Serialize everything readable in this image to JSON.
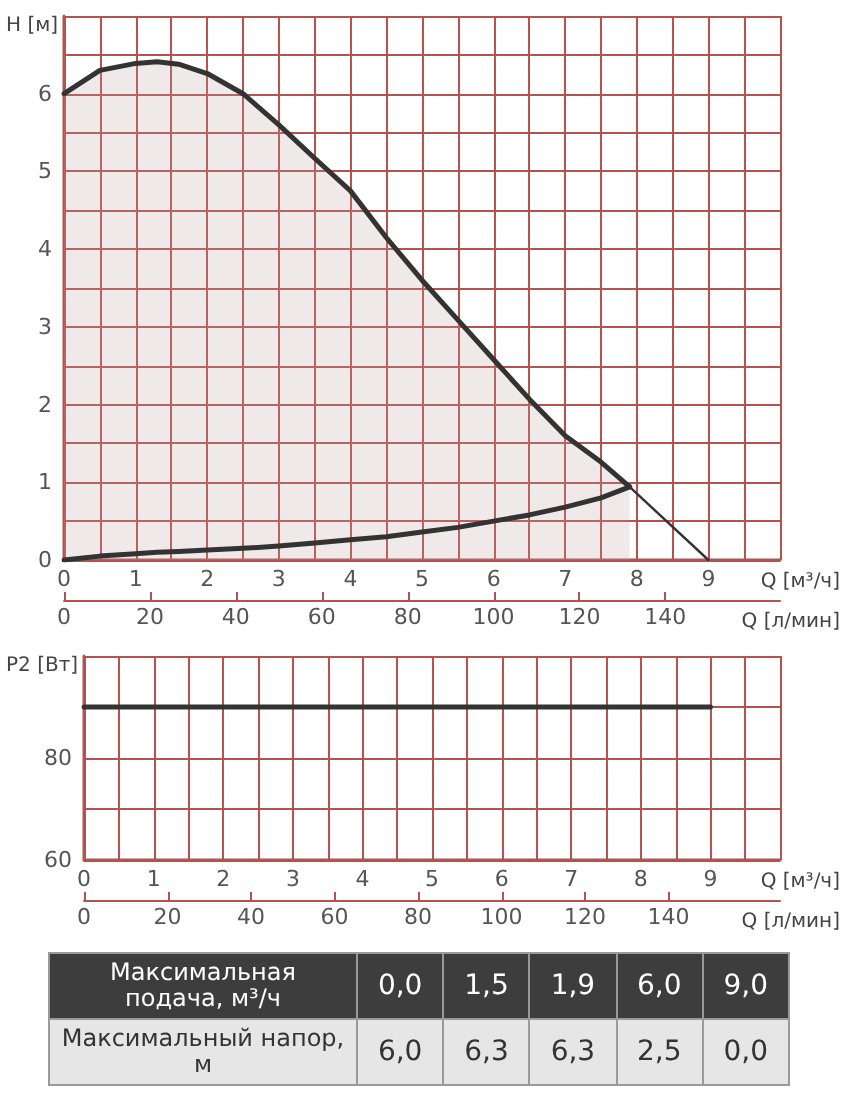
{
  "chart_data": [
    {
      "type": "line",
      "ylabel": "H [м]",
      "xlabel": "Q [м³/ч]",
      "x2label": "Q [л/мин]",
      "xlim": [
        0,
        10
      ],
      "xticks": [
        0,
        {
          "value": 0.5,
          "label": null
        },
        1,
        {
          "value": 1.5,
          "label": null
        },
        2,
        {
          "value": 2.5,
          "label": null
        },
        3,
        {
          "value": 3.5,
          "label": null
        },
        4,
        {
          "value": 4.5,
          "label": null
        },
        5,
        {
          "value": 5.5,
          "label": null
        },
        6,
        {
          "value": 6.5,
          "label": null
        },
        7,
        {
          "value": 7.5,
          "label": null
        },
        8,
        {
          "value": 8.5,
          "label": null
        },
        9,
        {
          "value": 9.5,
          "label": null
        },
        {
          "value": 10,
          "label": null
        }
      ],
      "x2lim": [
        0,
        166.7
      ],
      "x2ticks": [
        0,
        20,
        40,
        60,
        80,
        100,
        120,
        140
      ],
      "ylim": [
        0,
        7
      ],
      "yticks": [
        0,
        {
          "value": 0.5,
          "label": null
        },
        1,
        {
          "value": 1.5,
          "label": null
        },
        2,
        {
          "value": 2.5,
          "label": null
        },
        3,
        {
          "value": 3.5,
          "label": null
        },
        4,
        {
          "value": 4.5,
          "label": null
        },
        5,
        {
          "value": 5.5,
          "label": null
        },
        6,
        {
          "value": 6.5,
          "label": null
        },
        {
          "value": 7,
          "label": null
        }
      ],
      "grid": true,
      "marker": "none",
      "series": [
        {
          "type": "area",
          "color": "#333333",
          "x": [
            0,
            0.5,
            1,
            1.3,
            1.6,
            2,
            2.5,
            3,
            3.5,
            4,
            4.5,
            5,
            5.5,
            6,
            6.5,
            7,
            7.5,
            7.9
          ],
          "values": [
            6,
            6.3,
            6.39,
            6.41,
            6.38,
            6.26,
            6.0,
            5.6,
            5.17,
            4.75,
            4.15,
            3.6,
            3.09,
            2.58,
            2.07,
            1.6,
            1.26,
            0.94
          ]
        },
        {
          "color": "#333333",
          "x": [
            0,
            0.5,
            1,
            1.3,
            1.6,
            2,
            2.5,
            3,
            3.5,
            4,
            4.5,
            5,
            5.5,
            6,
            6.5,
            7,
            7.5,
            7.9
          ],
          "values": [
            0,
            0.05,
            0.08,
            0.1,
            0.11,
            0.13,
            0.15,
            0.18,
            0.22,
            0.26,
            0.3,
            0.36,
            0.42,
            0.5,
            0.58,
            0.68,
            0.8,
            0.94
          ]
        },
        {
          "color": "#333333",
          "x": [
            7.9,
            9
          ],
          "values": [
            0.94,
            0
          ]
        }
      ]
    },
    {
      "type": "line",
      "ylabel": "P2 [Вт]",
      "xlabel": "Q [м³/ч]",
      "x2label": "Q [л/мин]",
      "xlim": [
        0,
        10
      ],
      "xticks": [
        0,
        {
          "value": 0.5,
          "label": null
        },
        1,
        {
          "value": 1.5,
          "label": null
        },
        2,
        {
          "value": 2.5,
          "label": null
        },
        3,
        {
          "value": 3.5,
          "label": null
        },
        4,
        {
          "value": 4.5,
          "label": null
        },
        5,
        {
          "value": 5.5,
          "label": null
        },
        6,
        {
          "value": 6.5,
          "label": null
        },
        7,
        {
          "value": 7.5,
          "label": null
        },
        8,
        {
          "value": 8.5,
          "label": null
        },
        9,
        {
          "value": 9.5,
          "label": null
        },
        {
          "value": 10,
          "label": null
        }
      ],
      "x2lim": [
        0,
        166.7
      ],
      "x2ticks": [
        0,
        20,
        40,
        60,
        80,
        100,
        120,
        140
      ],
      "ylim": [
        60,
        100
      ],
      "yticks": [
        60,
        {
          "value": 70,
          "label": null
        },
        80,
        {
          "value": 90,
          "label": null
        },
        {
          "value": 100,
          "label": null
        }
      ],
      "grid": true,
      "marker": "none",
      "series": [
        {
          "color": "#333333",
          "x": [
            0,
            9
          ],
          "values": [
            90,
            90
          ]
        }
      ]
    },
    {
      "type": "other",
      "annotations": [
        "Максимальная подача, м³/ч",
        "0,0",
        "1,5",
        "1,9",
        "6,0",
        "9,0",
        "Максимальный напор, м",
        "6,0",
        "6,3",
        "6,3",
        "2,5",
        "0,0"
      ]
    }
  ]
}
